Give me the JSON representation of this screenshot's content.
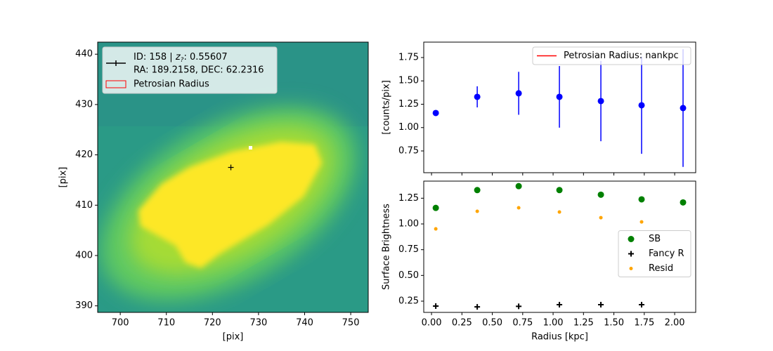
{
  "chart_data": [
    {
      "type": "image",
      "xlabel": "[pix]",
      "ylabel": "[pix]",
      "xlim": [
        695.1,
        753.8
      ],
      "ylim": [
        388.7,
        442.4
      ],
      "xticks": [
        700,
        710,
        720,
        730,
        740,
        750
      ],
      "yticks": [
        390,
        400,
        410,
        420,
        430,
        440
      ],
      "center": {
        "x": 724,
        "y": 417.5,
        "color": "#000000"
      },
      "legend": {
        "loc": "upper left",
        "entries": [
          {
            "label_parts": [
              "ID: 158 | ",
              "z",
              "?",
              ": 0.55607"
            ],
            "label_line2": "RA: 189.2158, DEC: 62.2316",
            "color": "#000000"
          },
          {
            "label": "Petrosian Radius",
            "color": "#ff0000"
          }
        ]
      }
    },
    {
      "type": "errorbar",
      "ylabel": "[counts/pix]",
      "x": [
        0.035,
        0.376,
        0.717,
        1.052,
        1.393,
        1.728,
        2.069
      ],
      "values": [
        1.156,
        1.329,
        1.367,
        1.329,
        1.284,
        1.239,
        1.209
      ],
      "errors": [
        0,
        0.113,
        0.23,
        0.33,
        0.43,
        0.52,
        0.63
      ],
      "color": "#0000ff",
      "xlim": [
        -0.064,
        2.173
      ],
      "ylim": [
        0.517,
        1.915
      ],
      "xticks": [
        0,
        0.25,
        0.5,
        0.75,
        1,
        1.25,
        1.5,
        1.75,
        2
      ],
      "yticks": [
        0.75,
        {
          "value": 1,
          "label": "1.00"
        },
        1.25,
        {
          "value": 1.5,
          "label": "1.50"
        },
        1.75
      ],
      "legend": {
        "loc": "upper right",
        "entries": [
          {
            "label": "Petrosian Radius: nankpc",
            "color": "#ff0000"
          }
        ]
      }
    },
    {
      "type": "scatter",
      "xlabel": "Radius [kpc]",
      "ylabel": "Surface Brightness",
      "x": [
        0.035,
        0.376,
        0.717,
        1.052,
        1.393,
        1.728,
        2.069
      ],
      "series": [
        {
          "name": "SB",
          "color": "#008000",
          "marker": "circle",
          "values": [
            1.156,
            1.329,
            1.367,
            1.329,
            1.284,
            1.239,
            1.209
          ]
        },
        {
          "name": "Fancy R",
          "color": "#000000",
          "marker": "plus",
          "values": [
            0.202,
            0.195,
            0.2,
            0.216,
            0.216,
            0.216,
            null
          ]
        },
        {
          "name": "Resid",
          "color": "#ffa500",
          "marker": "dot",
          "values": [
            0.952,
            1.123,
            1.157,
            1.116,
            1.061,
            1.02,
            null
          ]
        }
      ],
      "xlim": [
        -0.064,
        2.173
      ],
      "ylim": [
        0.141,
        1.416
      ],
      "xticks": [
        {
          "value": 0,
          "label": "0.00"
        },
        0.25,
        {
          "value": 0.5,
          "label": "0.50"
        },
        0.75,
        {
          "value": 1,
          "label": "1.00"
        },
        1.25,
        {
          "value": 1.5,
          "label": "1.50"
        },
        1.75,
        {
          "value": 2,
          "label": "2.00"
        }
      ],
      "yticks": [
        0.25,
        {
          "value": 0.5,
          "label": "0.50"
        },
        0.75,
        {
          "value": 1,
          "label": "1.00"
        },
        1.25
      ],
      "legend": {
        "loc": "center right"
      }
    }
  ]
}
